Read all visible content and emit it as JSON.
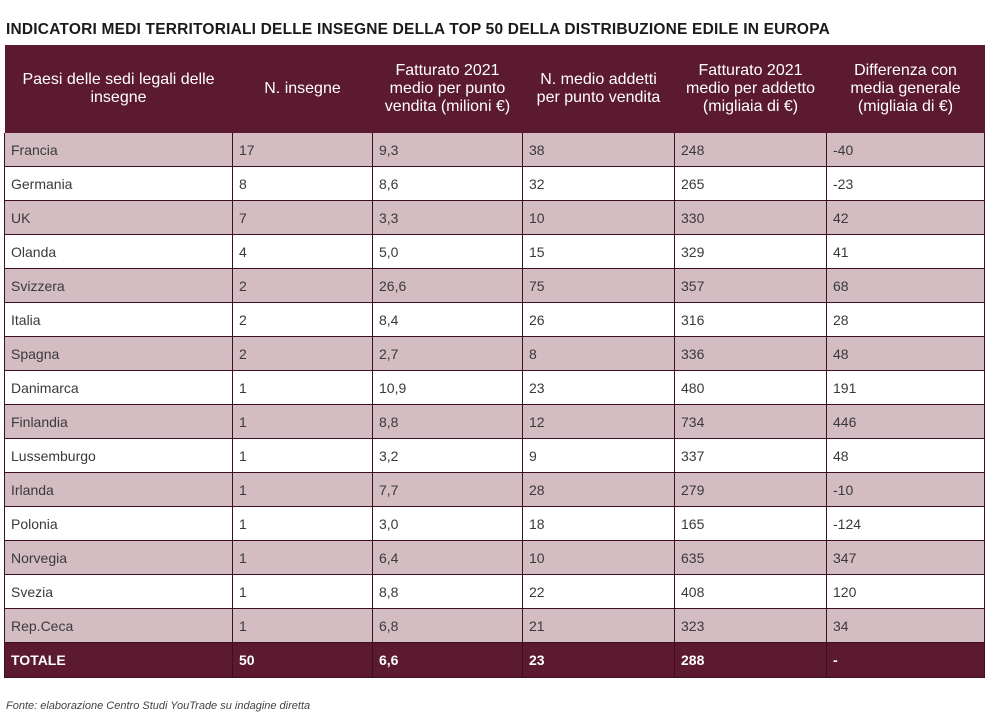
{
  "title": "INDICATORI MEDI TERRITORIALI DELLE INSEGNE DELLA TOP 50 DELLA DISTRIBUZIONE EDILE IN EUROPA",
  "source": "Fonte: elaborazione Centro Studi YouTrade su indagine diretta",
  "chart_data": {
    "type": "table",
    "title": "INDICATORI MEDI TERRITORIALI DELLE INSEGNE DELLA TOP 50 DELLA DISTRIBUZIONE EDILE IN EUROPA",
    "columns": [
      "Paesi delle sedi legali delle insegne",
      "N. insegne",
      "Fatturato 2021 medio per punto vendita (milioni €)",
      "N. medio addetti per punto vendita",
      "Fatturato 2021 medio per addetto (migliaia di  €)",
      "Differenza con media generale (migliaia di €)"
    ],
    "rows": [
      [
        "Francia",
        "17",
        "9,3",
        "38",
        "248",
        "-40"
      ],
      [
        "Germania",
        "8",
        "8,6",
        "32",
        "265",
        "-23"
      ],
      [
        "UK",
        "7",
        "3,3",
        "10",
        "330",
        "42"
      ],
      [
        "Olanda",
        "4",
        "5,0",
        "15",
        "329",
        "41"
      ],
      [
        "Svizzera",
        "2",
        "26,6",
        "75",
        "357",
        "68"
      ],
      [
        "Italia",
        "2",
        "8,4",
        "26",
        "316",
        "28"
      ],
      [
        "Spagna",
        "2",
        "2,7",
        "8",
        "336",
        "48"
      ],
      [
        "Danimarca",
        "1",
        "10,9",
        "23",
        "480",
        "191"
      ],
      [
        "Finlandia",
        "1",
        "8,8",
        "12",
        "734",
        "446"
      ],
      [
        "Lussemburgo",
        "1",
        "3,2",
        "9",
        "337",
        "48"
      ],
      [
        "Irlanda",
        "1",
        "7,7",
        "28",
        "279",
        "-10"
      ],
      [
        "Polonia",
        "1",
        "3,0",
        "18",
        "165",
        "-124"
      ],
      [
        "Norvegia",
        "1",
        "6,4",
        "10",
        "635",
        "347"
      ],
      [
        "Svezia",
        "1",
        "8,8",
        "22",
        "408",
        "120"
      ],
      [
        "Rep.Ceca",
        "1",
        "6,8",
        "21",
        "323",
        "34"
      ]
    ],
    "total": [
      "TOTALE",
      "50",
      "6,6",
      "23",
      "288",
      "-"
    ],
    "colors": {
      "header": "#5b1a30",
      "band": "#d3bcc2",
      "border": "#3d0f20"
    }
  }
}
